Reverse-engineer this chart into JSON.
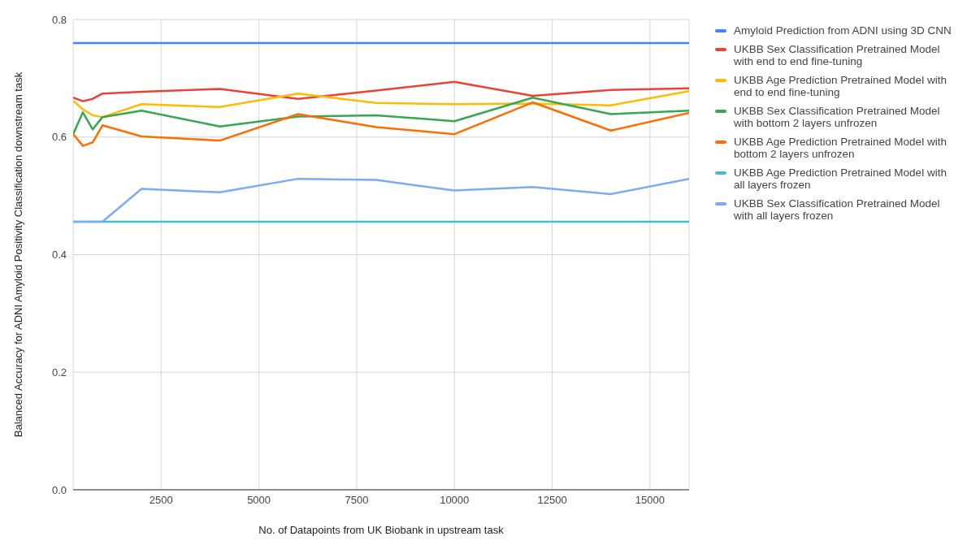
{
  "chart_data": {
    "type": "line",
    "xlabel": "No. of Datapoints from UK Biobank in upstream task",
    "ylabel": "Balanced Accuracy for ADNI Amyloid Positivity Classification downstream task",
    "x": [
      250,
      500,
      750,
      1000,
      2000,
      4000,
      6000,
      8000,
      10000,
      12000,
      14000,
      16000
    ],
    "xlim": [
      250,
      16000
    ],
    "xticks": [
      2500,
      5000,
      7500,
      10000,
      12500,
      15000
    ],
    "ylim": [
      0,
      0.8
    ],
    "yticks": [
      {
        "value": 0,
        "label": "0.0"
      },
      {
        "value": 0.2,
        "label": "0.2"
      },
      {
        "value": 0.4,
        "label": "0.4"
      },
      {
        "value": 0.6,
        "label": "0.6"
      },
      {
        "value": 0.8,
        "label": "0.8"
      }
    ],
    "grid": true,
    "legend": "right",
    "marker": "none",
    "line_style": "solid",
    "series": [
      {
        "name": "Amyloid Prediction from ADNI using 3D CNN",
        "color": "#4285f4",
        "values": [
          0.76,
          0.76,
          0.76,
          0.76,
          0.76,
          0.76,
          0.76,
          0.76,
          0.76,
          0.76,
          0.76,
          0.76
        ]
      },
      {
        "name": "UKBB Sex Classification Pretrained Model with end to end fine-tuning",
        "color": "#ea4335",
        "values": [
          0.667,
          0.661,
          0.665,
          0.674,
          0.677,
          0.682,
          0.665,
          0.679,
          0.694,
          0.67,
          0.68,
          0.683
        ]
      },
      {
        "name": "UKBB Age Prediction Pretrained Model with end to end fine-tuning",
        "color": "#fbbc04",
        "values": [
          0.662,
          0.647,
          0.637,
          0.634,
          0.656,
          0.651,
          0.674,
          0.658,
          0.656,
          0.657,
          0.654,
          0.678
        ]
      },
      {
        "name": "UKBB Sex Classification Pretrained Model with bottom 2 layers unfrozen",
        "color": "#34a853",
        "values": [
          0.605,
          0.642,
          0.613,
          0.634,
          0.645,
          0.618,
          0.635,
          0.637,
          0.627,
          0.667,
          0.639,
          0.645
        ]
      },
      {
        "name": "UKBB Age Prediction Pretrained Model with bottom 2 layers unfrozen",
        "color": "#ff6d01",
        "values": [
          0.605,
          0.585,
          0.591,
          0.62,
          0.601,
          0.594,
          0.639,
          0.617,
          0.605,
          0.659,
          0.611,
          0.641
        ]
      },
      {
        "name": "UKBB Age Prediction Pretrained Model with all layers frozen",
        "color": "#46bdc6",
        "values": [
          0.456,
          0.456,
          0.456,
          0.456,
          0.456,
          0.456,
          0.456,
          0.456,
          0.456,
          0.456,
          0.456,
          0.456
        ]
      },
      {
        "name": "UKBB Sex Classification Pretrained Model with all layers frozen",
        "color": "#7baaf7",
        "values": [
          0.456,
          0.456,
          0.456,
          0.456,
          0.512,
          0.506,
          0.529,
          0.527,
          0.509,
          0.515,
          0.503,
          0.529
        ]
      }
    ]
  }
}
